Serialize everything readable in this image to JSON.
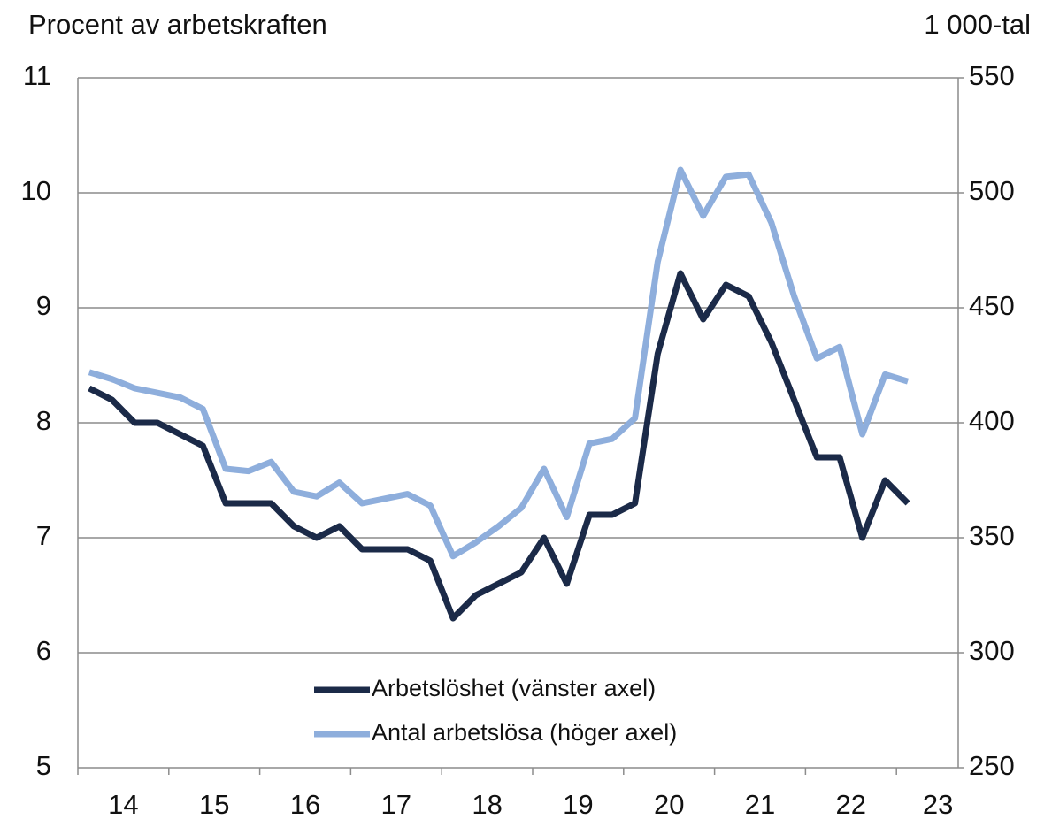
{
  "chart_data": {
    "type": "line",
    "y_axis_label": "Procent av arbetskraften",
    "y2_axis_label": "1 000-tal",
    "categories": [
      "14",
      null,
      null,
      null,
      "15",
      null,
      null,
      null,
      "16",
      null,
      null,
      null,
      "17",
      null,
      null,
      null,
      "18",
      null,
      null,
      null,
      "19",
      null,
      null,
      null,
      "20",
      null,
      null,
      null,
      "21",
      null,
      null,
      null,
      "22",
      null,
      null,
      null,
      "23"
    ],
    "series": [
      {
        "name": "Arbetslöshet (vänster axel)",
        "color": "#1b2a48",
        "axis": "y",
        "values": [
          8.3,
          8.2,
          8.0,
          8.0,
          7.9,
          7.8,
          7.3,
          7.3,
          7.3,
          7.1,
          7.0,
          7.1,
          6.9,
          6.9,
          6.9,
          6.8,
          6.3,
          6.5,
          6.6,
          6.7,
          7.0,
          6.6,
          7.2,
          7.2,
          7.3,
          8.6,
          9.3,
          8.9,
          9.2,
          9.1,
          8.7,
          8.2,
          7.7,
          7.7,
          7.0,
          7.5,
          7.3
        ]
      },
      {
        "name": "Antal arbetslösa (höger axel)",
        "color": "#8eaedc",
        "axis": "y2",
        "values": [
          422,
          419,
          415,
          413,
          411,
          406,
          380,
          379,
          383,
          370,
          368,
          374,
          365,
          367,
          369,
          364,
          342,
          348,
          355,
          363,
          380,
          359,
          391,
          393,
          402,
          470,
          510,
          490,
          507,
          508,
          487,
          455,
          428,
          433,
          395,
          421,
          418
        ]
      }
    ],
    "ylim": [
      5,
      11
    ],
    "yticks": [
      5,
      6,
      7,
      8,
      9,
      10,
      11
    ],
    "y2lim": [
      250,
      550
    ],
    "y2ticks": [
      250,
      300,
      350,
      400,
      450,
      500,
      550
    ],
    "grid": true,
    "legend": "bottom"
  }
}
